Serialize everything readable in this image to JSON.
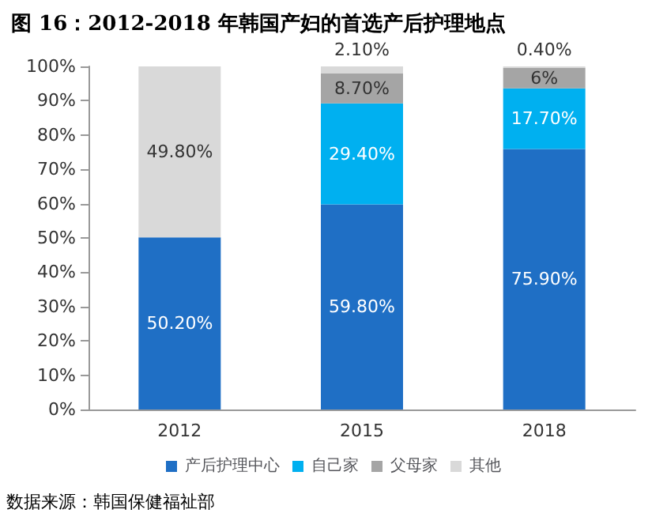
{
  "chart_data": {
    "type": "bar",
    "title": "图 16：2012-2018 年韩国产妇的首选产后护理地点",
    "categories": [
      "2012",
      "2015",
      "2018"
    ],
    "stacked": true,
    "series": [
      {
        "name": "产后护理中心",
        "color": "#1f6fc5",
        "values": [
          50.2,
          59.8,
          75.9
        ],
        "value_labels": [
          "50.20%",
          "59.80%",
          "75.90%"
        ]
      },
      {
        "name": "自己家",
        "color": "#00b0f0",
        "values": [
          null,
          29.4,
          17.7
        ],
        "value_labels": [
          null,
          "29.40%",
          "17.70%"
        ]
      },
      {
        "name": "父母家",
        "color": "#a5a5a5",
        "values": [
          null,
          8.7,
          6
        ],
        "value_labels": [
          null,
          "8.70%",
          "6%"
        ]
      },
      {
        "name": "其他",
        "color": "#d9d9d9",
        "values": [
          49.8,
          2.1,
          0.4
        ],
        "value_labels": [
          "49.80%",
          "2.10%",
          "0.40%"
        ]
      }
    ],
    "ylim": [
      0,
      100
    ],
    "yticks": [
      {
        "value": 0,
        "label": "0%"
      },
      {
        "value": 10,
        "label": "10%"
      },
      {
        "value": 20,
        "label": "20%"
      },
      {
        "value": 30,
        "label": "30%"
      },
      {
        "value": 40,
        "label": "40%"
      },
      {
        "value": 50,
        "label": "50%"
      },
      {
        "value": 60,
        "label": "60%"
      },
      {
        "value": 70,
        "label": "70%"
      },
      {
        "value": 80,
        "label": "80%"
      },
      {
        "value": 90,
        "label": "90%"
      },
      {
        "value": 100,
        "label": "100%"
      }
    ],
    "grid": false,
    "legend": "bottom",
    "annotations": [
      "数据来源：韩国保健福祉部"
    ]
  }
}
